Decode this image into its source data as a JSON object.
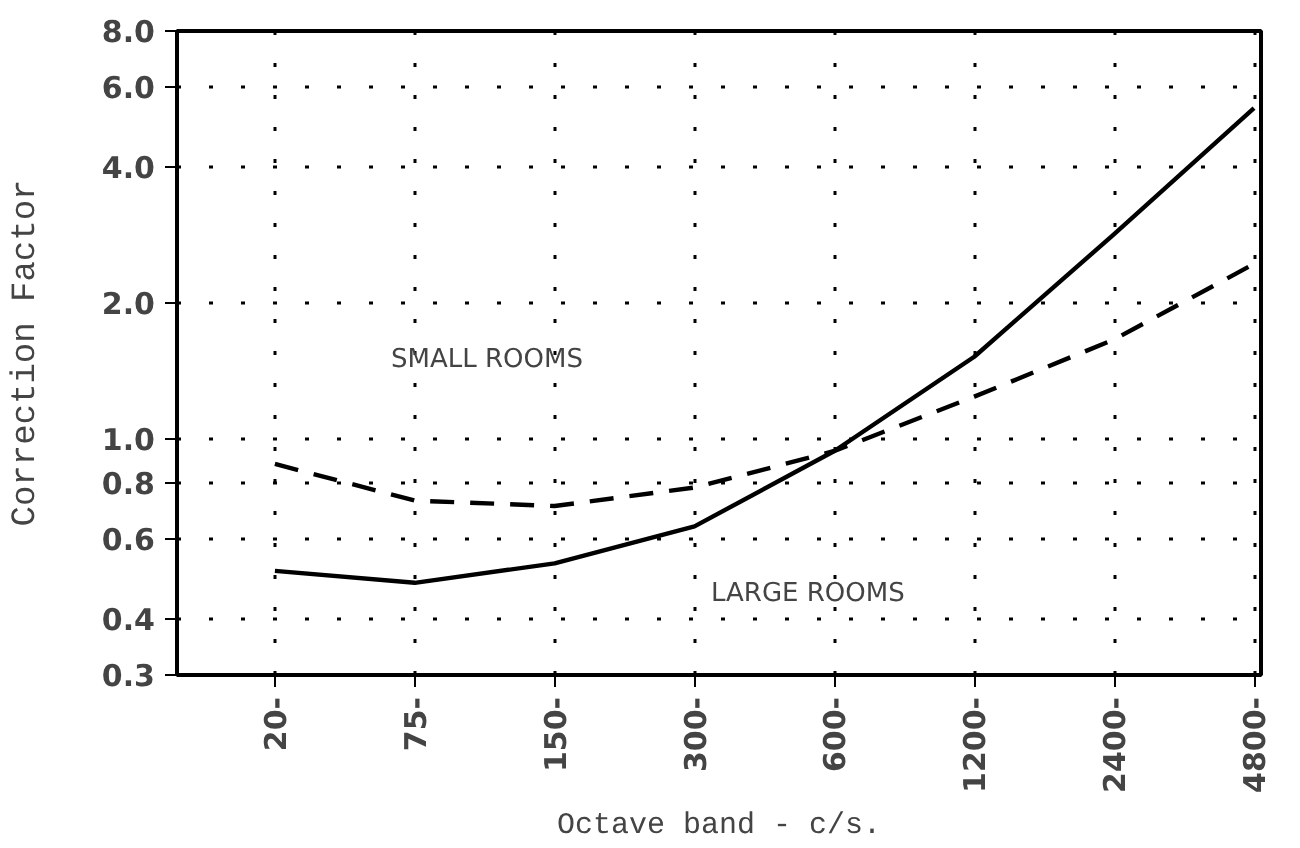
{
  "chart_data": {
    "type": "line",
    "xlabel": "Octave band - c/s.",
    "ylabel": "Correction Factor",
    "categories": [
      "20-",
      "75-",
      "150-",
      "300-",
      "600-",
      "1200-",
      "2400-",
      "4800-"
    ],
    "log": "y",
    "ylim": [
      0.3,
      8
    ],
    "yticks": [
      {
        "value": 0.3,
        "label": "0.3"
      },
      {
        "value": 0.4,
        "label": "0.4"
      },
      {
        "value": 0.6,
        "label": "0.6"
      },
      {
        "value": 0.8,
        "label": "0.8"
      },
      {
        "value": 1,
        "label": "1.0"
      },
      {
        "value": 2,
        "label": "2.0"
      },
      {
        "value": 4,
        "label": "4.0"
      },
      {
        "value": 6,
        "label": "6.0"
      },
      {
        "value": 8,
        "label": "8.0"
      }
    ],
    "grid": true,
    "marker": "none",
    "series": [
      {
        "color": "#000000",
        "line_style": "solid",
        "values": [
          0.51,
          0.48,
          0.53,
          0.64,
          0.94,
          1.52,
          2.84,
          5.4
        ]
      },
      {
        "color": "#000000",
        "line_style": "dashed",
        "values": [
          0.88,
          0.73,
          0.71,
          0.78,
          0.94,
          1.24,
          1.66,
          2.44
        ]
      }
    ],
    "annotations": [
      "SMALL ROOMS",
      "LARGE ROOMS"
    ]
  }
}
